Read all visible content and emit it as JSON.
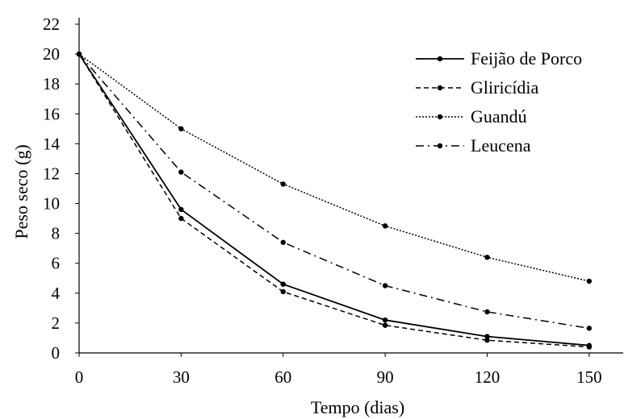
{
  "chart_data": {
    "type": "line",
    "title": "",
    "xlabel": "Tempo (dias)",
    "ylabel": "Peso seco (g)",
    "x": [
      0,
      30,
      60,
      90,
      120,
      150
    ],
    "xticks": [
      "0",
      "30",
      "60",
      "90",
      "120",
      "150"
    ],
    "yticks": [
      "0",
      "2",
      "4",
      "6",
      "8",
      "10",
      "12",
      "14",
      "16",
      "18",
      "20",
      "22"
    ],
    "xlim": [
      0,
      160
    ],
    "ylim": [
      0,
      22
    ],
    "grid": false,
    "legend_position": "top-right",
    "series": [
      {
        "name": "Feijão de Porco",
        "style": "solid",
        "color": "#000000",
        "values": [
          20,
          9.6,
          4.6,
          2.2,
          1.1,
          0.5
        ]
      },
      {
        "name": "Gliricídia",
        "style": "dashed",
        "color": "#000000",
        "values": [
          20,
          9.0,
          4.1,
          1.85,
          0.85,
          0.4
        ]
      },
      {
        "name": "Guandú",
        "style": "dotted",
        "color": "#000000",
        "values": [
          20,
          15.0,
          11.3,
          8.5,
          6.4,
          4.8
        ]
      },
      {
        "name": "Leucena",
        "style": "dashdot",
        "color": "#000000",
        "values": [
          20,
          12.1,
          7.4,
          4.5,
          2.75,
          1.65
        ]
      }
    ]
  }
}
